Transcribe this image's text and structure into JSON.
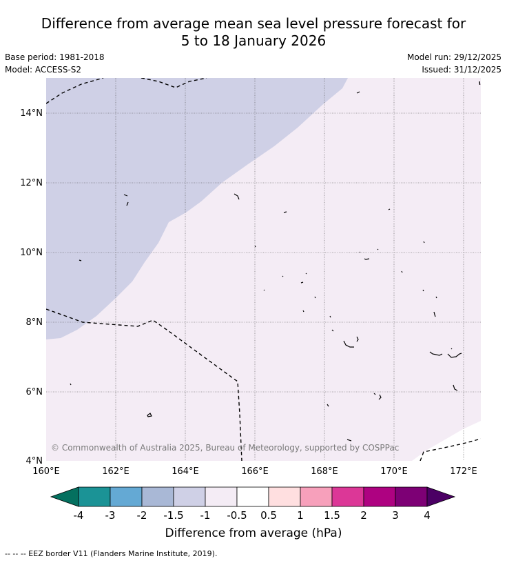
{
  "title": {
    "line1": "Difference from average mean sea level pressure forecast for",
    "line2": "5 to 18 January 2026"
  },
  "meta": {
    "base_period": "Base period: 1981-2018",
    "model": "Model: ACCESS-S2",
    "model_run": "Model run: 29/12/2025",
    "issued": "Issued: 31/12/2025"
  },
  "map": {
    "lon_range": [
      160,
      172.5
    ],
    "lat_range": [
      4,
      15
    ],
    "lon_ticks": [
      "160°E",
      "162°E",
      "164°E",
      "166°E",
      "168°E",
      "170°E",
      "172°E"
    ],
    "lat_ticks": [
      "4°N",
      "6°N",
      "8°N",
      "10°N",
      "12°N",
      "14°N"
    ],
    "copyright": "© Commonwealth of Australia 2025, Bureau of Meteorology, supported by COSPPac",
    "colors": {
      "band_m1_to_m1_5": "#cfd0e6",
      "band_m0_5_to_m1": "#f4ecf5",
      "band_m0_5_to_0_5": "#ffffff",
      "land": "#000000",
      "eez": "#000000"
    }
  },
  "colorbar": {
    "labels": [
      "-4",
      "-3",
      "-2",
      "-1.5",
      "-1",
      "-0.5",
      "0.5",
      "1",
      "1.5",
      "2",
      "3",
      "4"
    ],
    "colors": [
      "#04705f",
      "#1b9396",
      "#64a9d4",
      "#a9b8d6",
      "#cfd0e6",
      "#f4ecf5",
      "#ffffff",
      "#ffdfe0",
      "#f7a0bb",
      "#dc3797",
      "#ae0281",
      "#7d0075",
      "#4b0064"
    ],
    "title": "Difference from average (hPa)"
  },
  "footer": "--  --  -- EEZ border V11 (Flanders Marine Institute, 2019)."
}
